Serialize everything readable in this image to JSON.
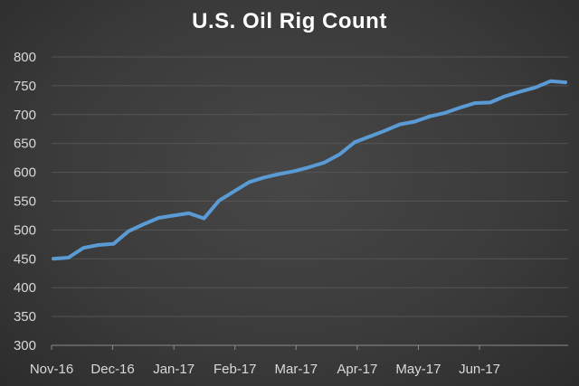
{
  "chart_data": {
    "type": "line",
    "title": "U.S. Oil Rig Count",
    "xlabel": "",
    "ylabel": "",
    "ylim": [
      300,
      800
    ],
    "yticks": [
      300,
      350,
      400,
      450,
      500,
      550,
      600,
      650,
      700,
      750,
      800
    ],
    "xticks": [
      "Nov-16",
      "Dec-16",
      "Jan-17",
      "Feb-17",
      "Mar-17",
      "Apr-17",
      "May-17",
      "Jun-17"
    ],
    "grid": true,
    "legend": "none",
    "series": [
      {
        "color": "#5b9bd5",
        "values": [
          450,
          452,
          469,
          474,
          476,
          498,
          510,
          521,
          525,
          529,
          520,
          551,
          567,
          583,
          591,
          597,
          602,
          609,
          617,
          631,
          652,
          662,
          672,
          683,
          688,
          697,
          703,
          712,
          720,
          721,
          732,
          740,
          747,
          758,
          756
        ]
      }
    ]
  },
  "colors": {
    "background": "#3a3a3a",
    "line": "#5b9bd5",
    "grid": "#555555",
    "text": "#d9d9d9",
    "title": "#ffffff"
  }
}
